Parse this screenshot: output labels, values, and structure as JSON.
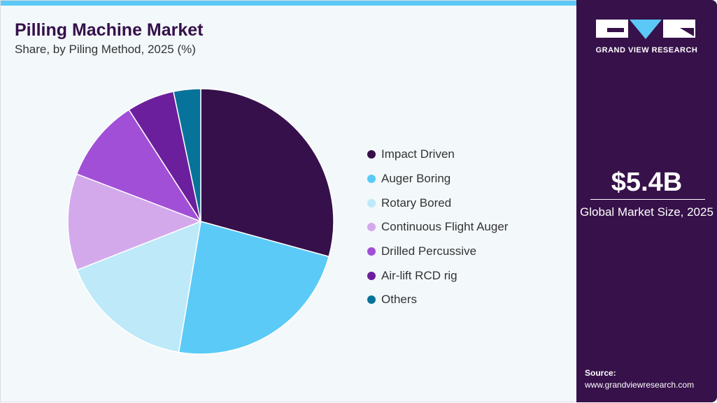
{
  "header": {
    "title": "Pilling Machine Market",
    "subtitle": "Share, by Piling Method, 2025 (%)"
  },
  "sidebar": {
    "logo_text": "GRAND VIEW RESEARCH",
    "market_size": "$5.4B",
    "market_label": "Global Market Size, 2025",
    "source_label": "Source:",
    "source_url": "www.grandviewresearch.com"
  },
  "chart_data": {
    "type": "pie",
    "start": "12 o'clock",
    "direction": "clockwise",
    "legend_position": "right",
    "series": [
      {
        "name": "Impact Driven",
        "value": 29.3,
        "color": "#36104a"
      },
      {
        "name": "Auger Boring",
        "value": 23.4,
        "color": "#5bcaf6"
      },
      {
        "name": "Rotary Bored",
        "value": 16.4,
        "color": "#bde9f9"
      },
      {
        "name": "Continuous Flight Auger",
        "value": 11.8,
        "color": "#d3a9ec"
      },
      {
        "name": "Drilled Percussive",
        "value": 10.1,
        "color": "#a24fd8"
      },
      {
        "name": "Air-lift RCD rig",
        "value": 5.8,
        "color": "#6c1f9c"
      },
      {
        "name": "Others",
        "value": 3.3,
        "color": "#08739a"
      }
    ]
  }
}
